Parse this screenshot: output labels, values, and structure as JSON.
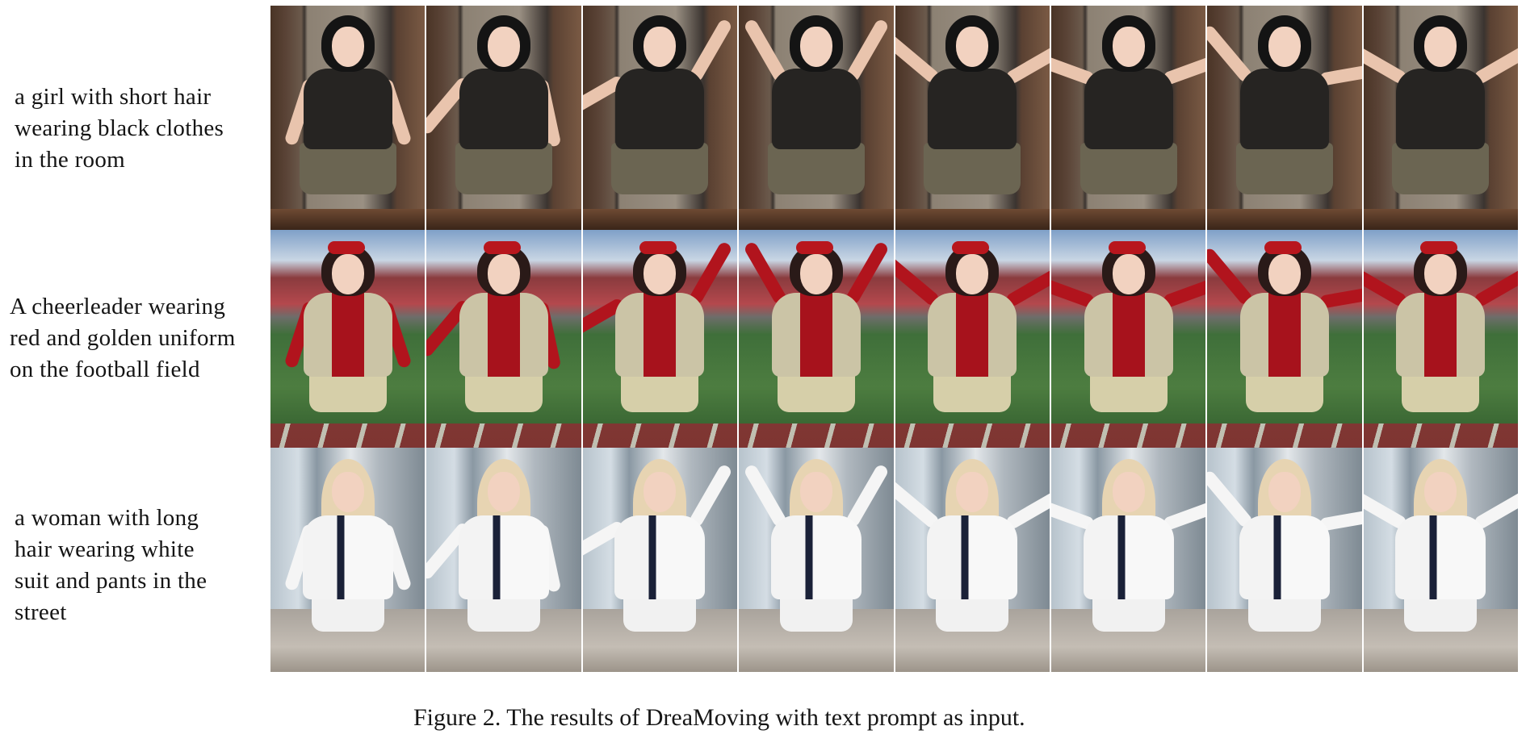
{
  "figure": {
    "caption": "Figure 2. The results of DreaMoving with text prompt as input."
  },
  "rows": [
    {
      "prompt": "a girl with short hair\nwearing black clothes\nin the room",
      "scene": "room",
      "frame_count": 8
    },
    {
      "prompt": "A cheerleader wearing\nred and golden uniform\non the football field",
      "scene": "football-field",
      "frame_count": 8
    },
    {
      "prompt": "a woman with long\nhair wearing white\nsuit and pants in the\nstreet",
      "scene": "street",
      "frame_count": 8
    }
  ],
  "colors": {
    "background": "#ffffff",
    "text": "#141414",
    "room_outfit": "#262422",
    "cheer_red": "#b1141d",
    "cheer_gold": "#cbc4a6",
    "street_suit": "#f3f3f3"
  }
}
